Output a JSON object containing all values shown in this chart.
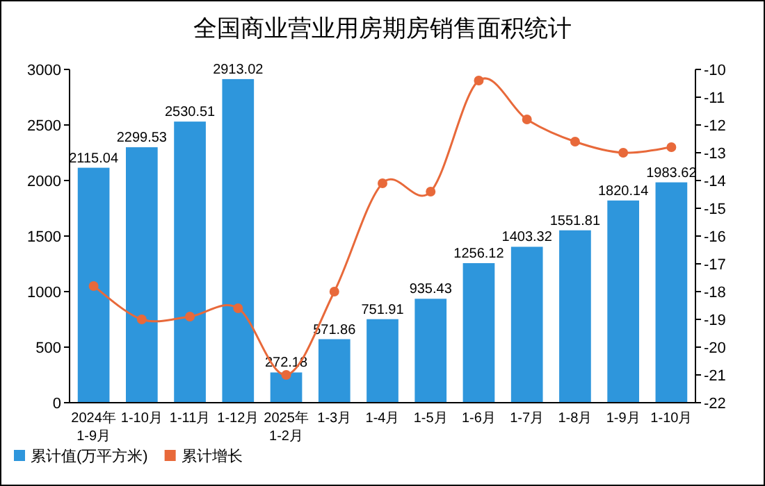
{
  "chart_data": {
    "type": "bar",
    "title": "全国商业营业用房期房销售面积统计",
    "categories": [
      "2024年\n1-9月",
      "1-10月",
      "1-11月",
      "1-12月",
      "2025年\n1-2月",
      "1-3月",
      "1-4月",
      "1-5月",
      "1-6月",
      "1-7月",
      "1-8月",
      "1-9月",
      "1-10月"
    ],
    "series": [
      {
        "name": "累计值(万平方米)",
        "color": "#2e96dc",
        "values": [
          2115.04,
          2299.53,
          2530.51,
          2913.02,
          272.18,
          571.86,
          751.91,
          935.43,
          1256.12,
          1403.32,
          1551.81,
          1820.14,
          1983.62
        ],
        "value_labels": [
          "2115.04",
          "2299.53",
          "2530.51",
          "2913.02",
          "272.18",
          "571.86",
          "751.91",
          "935.43",
          "1256.12",
          "1403.32",
          "1551.81",
          "1820.14",
          "1983.62"
        ]
      },
      {
        "name": "累计增长",
        "type": "line",
        "axis": "y2",
        "color": "#e8693a",
        "marker": "circle",
        "values": [
          -17.8,
          -19.0,
          -18.9,
          -18.6,
          -21.0,
          -18.0,
          -14.1,
          -14.4,
          -10.4,
          -11.8,
          -12.6,
          -13.0,
          -12.8
        ]
      }
    ],
    "ylim": [
      0,
      3000
    ],
    "yticks": [
      0,
      500,
      1000,
      1500,
      2000,
      2500,
      3000
    ],
    "y2lim": [
      -22,
      -10
    ],
    "y2ticks": [
      -22,
      -21,
      -20,
      -19,
      -18,
      -17,
      -16,
      -15,
      -14,
      -13,
      -12,
      -11,
      -10
    ],
    "grid": false,
    "legend": "bottom left"
  }
}
